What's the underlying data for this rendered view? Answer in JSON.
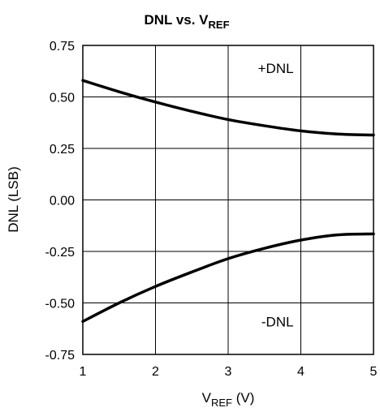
{
  "chart_data": {
    "type": "line",
    "title": "DNL vs. V",
    "title_subscript": "REF",
    "xlabel": "V",
    "xlabel_subscript": "REF",
    "xlabel_unit": " (V)",
    "ylabel": "DNL (LSB)",
    "xlim": [
      1,
      5
    ],
    "ylim": [
      -0.75,
      0.75
    ],
    "xticks": [
      1,
      2,
      3,
      4,
      5
    ],
    "xtick_labels": [
      "1",
      "2",
      "3",
      "4",
      "5"
    ],
    "yticks": [
      0.75,
      0.5,
      0.25,
      0.0,
      -0.25,
      -0.5,
      -0.75
    ],
    "ytick_labels": [
      "0.75",
      "0.50",
      "0.25",
      "0.00",
      "-0.25",
      "-0.50",
      "-0.75"
    ],
    "grid": true,
    "series": [
      {
        "name": "+DNL",
        "x": [
          1.0,
          1.5,
          2.0,
          2.5,
          3.0,
          3.5,
          4.0,
          4.5,
          5.0
        ],
        "y": [
          0.58,
          0.525,
          0.475,
          0.43,
          0.39,
          0.36,
          0.335,
          0.32,
          0.315
        ]
      },
      {
        "name": "-DNL",
        "x": [
          1.0,
          1.5,
          2.0,
          2.5,
          3.0,
          3.5,
          4.0,
          4.5,
          5.0
        ],
        "y": [
          -0.59,
          -0.5,
          -0.42,
          -0.35,
          -0.285,
          -0.235,
          -0.195,
          -0.17,
          -0.165
        ]
      }
    ],
    "annotations": [
      {
        "text": "+DNL",
        "x": 3.9,
        "y": 0.64
      },
      {
        "text": "-DNL",
        "x": 3.9,
        "y": -0.59
      }
    ]
  }
}
